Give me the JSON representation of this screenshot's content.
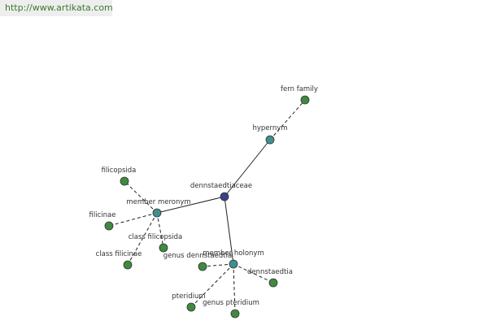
{
  "header": {
    "url": "http://www.artikata.com"
  },
  "nodes": [
    {
      "label": "dennstaedtiaceae"
    },
    {
      "label": "hypernym"
    },
    {
      "label": "fern family"
    },
    {
      "label": "member meronym"
    },
    {
      "label": "filicopsida"
    },
    {
      "label": "filicinae"
    },
    {
      "label": "class filicinae"
    },
    {
      "label": "class filicopsida"
    },
    {
      "label": "member holonym"
    },
    {
      "label": "genus dennstaedtia"
    },
    {
      "label": "dennstaedtia"
    },
    {
      "label": "pteridium"
    },
    {
      "label": "genus pteridium"
    }
  ]
}
